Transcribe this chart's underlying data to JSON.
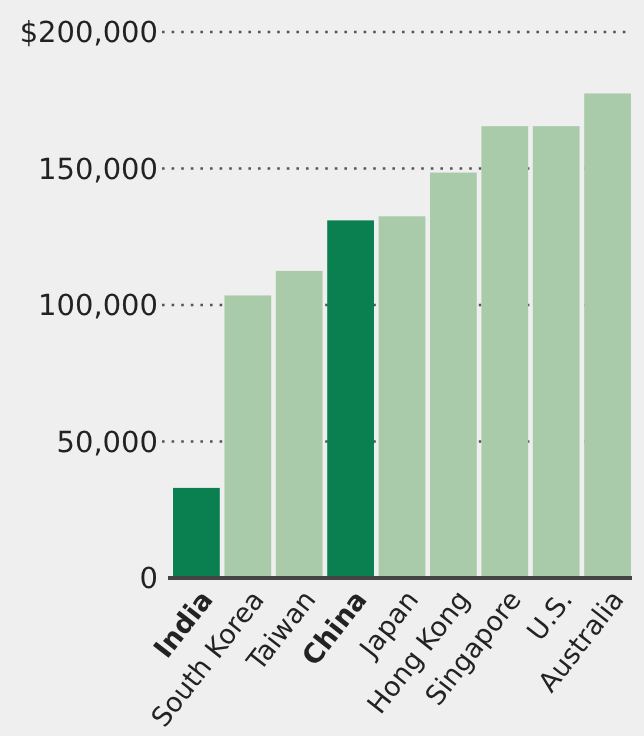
{
  "chart_data": {
    "type": "bar",
    "categories": [
      "India",
      "South Korea",
      "Taiwan",
      "China",
      "Japan",
      "Hong Kong",
      "Singapore",
      "U.S.",
      "Australia"
    ],
    "values": [
      33000,
      103500,
      112500,
      131000,
      132500,
      148500,
      165500,
      165500,
      177500
    ],
    "colors": [
      "#0a7f50",
      "#a9cbaa",
      "#a9cbaa",
      "#0a7f50",
      "#a9cbaa",
      "#a9cbaa",
      "#a9cbaa",
      "#a9cbaa",
      "#a9cbaa"
    ],
    "ylim": [
      0,
      200000
    ],
    "yticks": [
      0,
      {
        "value": 50000,
        "label": "50,000"
      },
      {
        "value": 100000,
        "label": "100,000"
      },
      {
        "value": 150000,
        "label": "150,000"
      },
      {
        "value": 200000,
        "label": "$200,000"
      }
    ],
    "grid": "y"
  }
}
